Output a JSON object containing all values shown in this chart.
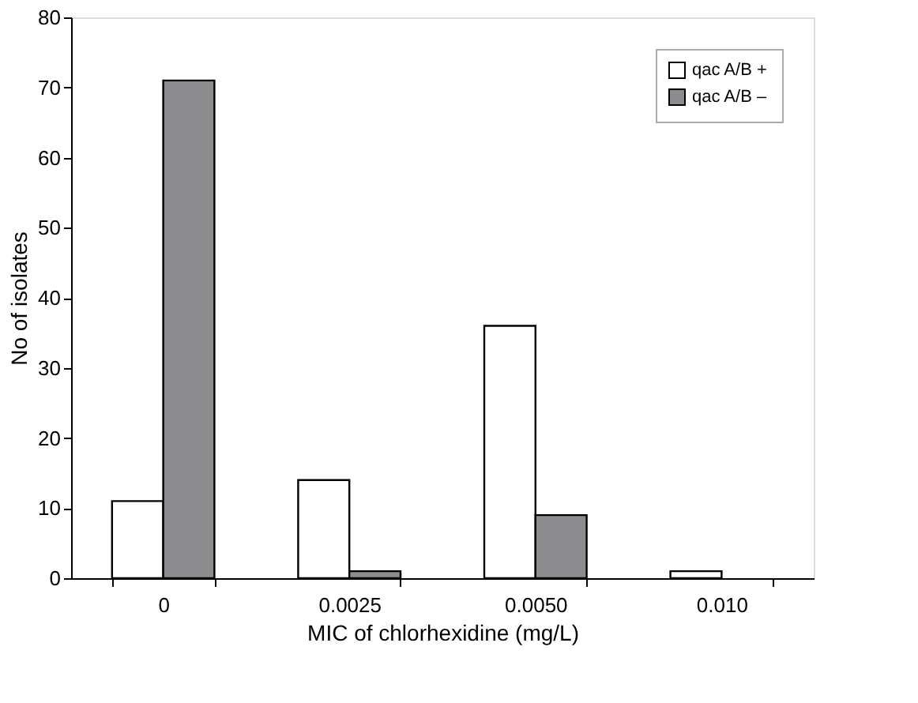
{
  "chart_data": {
    "type": "bar",
    "xlabel": "MIC of chlorhexidine (mg/L)",
    "ylabel": "No of isolates",
    "categories": [
      "0",
      "0.0025",
      "0.0050",
      "0.010"
    ],
    "series": [
      {
        "name": "qac A/B +",
        "color": "#ffffff",
        "values": [
          11,
          14,
          36,
          1
        ]
      },
      {
        "name": "qac A/B –",
        "color": "#8c8c8e",
        "values": [
          71,
          1,
          9,
          null
        ]
      }
    ],
    "ylim": [
      0,
      80
    ],
    "yticks": [
      0,
      10,
      20,
      30,
      40,
      50,
      60,
      70,
      80
    ],
    "grid": false,
    "legend": "top right"
  }
}
